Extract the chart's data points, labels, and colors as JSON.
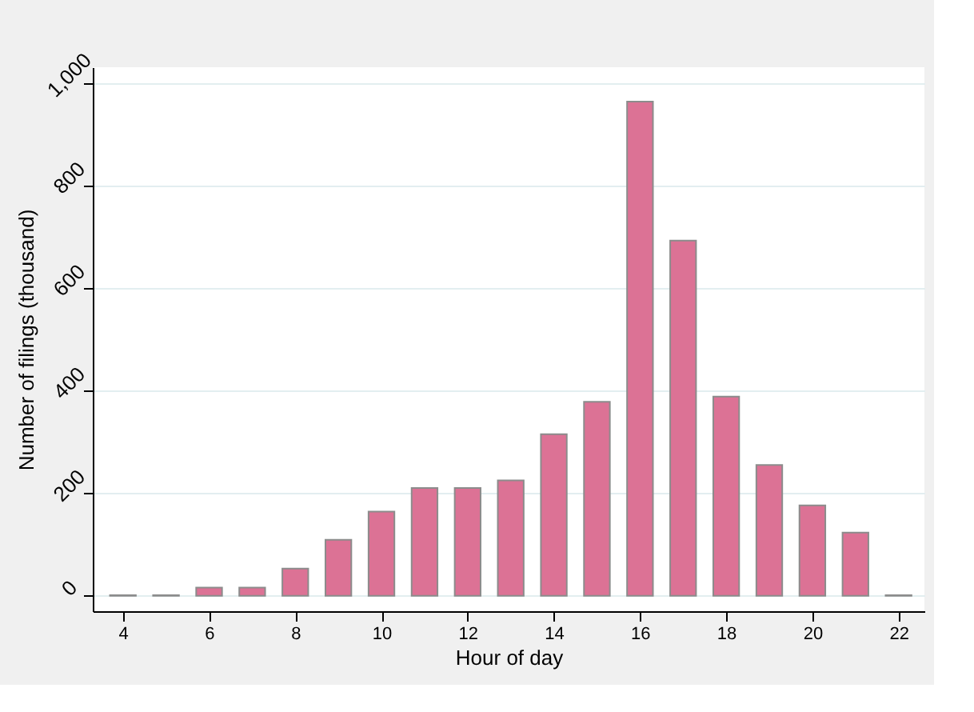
{
  "chart_data": {
    "type": "bar",
    "xlabel": "Hour of day",
    "ylabel": "Number of filings (thousand)",
    "x": [
      4,
      5,
      6,
      7,
      8,
      9,
      10,
      11,
      12,
      13,
      14,
      15,
      16,
      17,
      18,
      19,
      20,
      21,
      22
    ],
    "values": [
      1,
      1,
      16,
      16,
      53,
      109,
      164,
      210,
      210,
      225,
      315,
      378,
      963,
      692,
      388,
      255,
      176,
      123,
      1
    ],
    "color": "#dc7295",
    "xlim": [
      3.3,
      22.6
    ],
    "xticks": [
      4,
      6,
      8,
      10,
      12,
      14,
      16,
      18,
      20,
      22
    ],
    "ylim": [
      -30,
      1030
    ],
    "yticks": [
      0,
      200,
      400,
      600,
      800,
      {
        "value": 1000,
        "label": "1,000"
      }
    ],
    "grid": "y"
  }
}
